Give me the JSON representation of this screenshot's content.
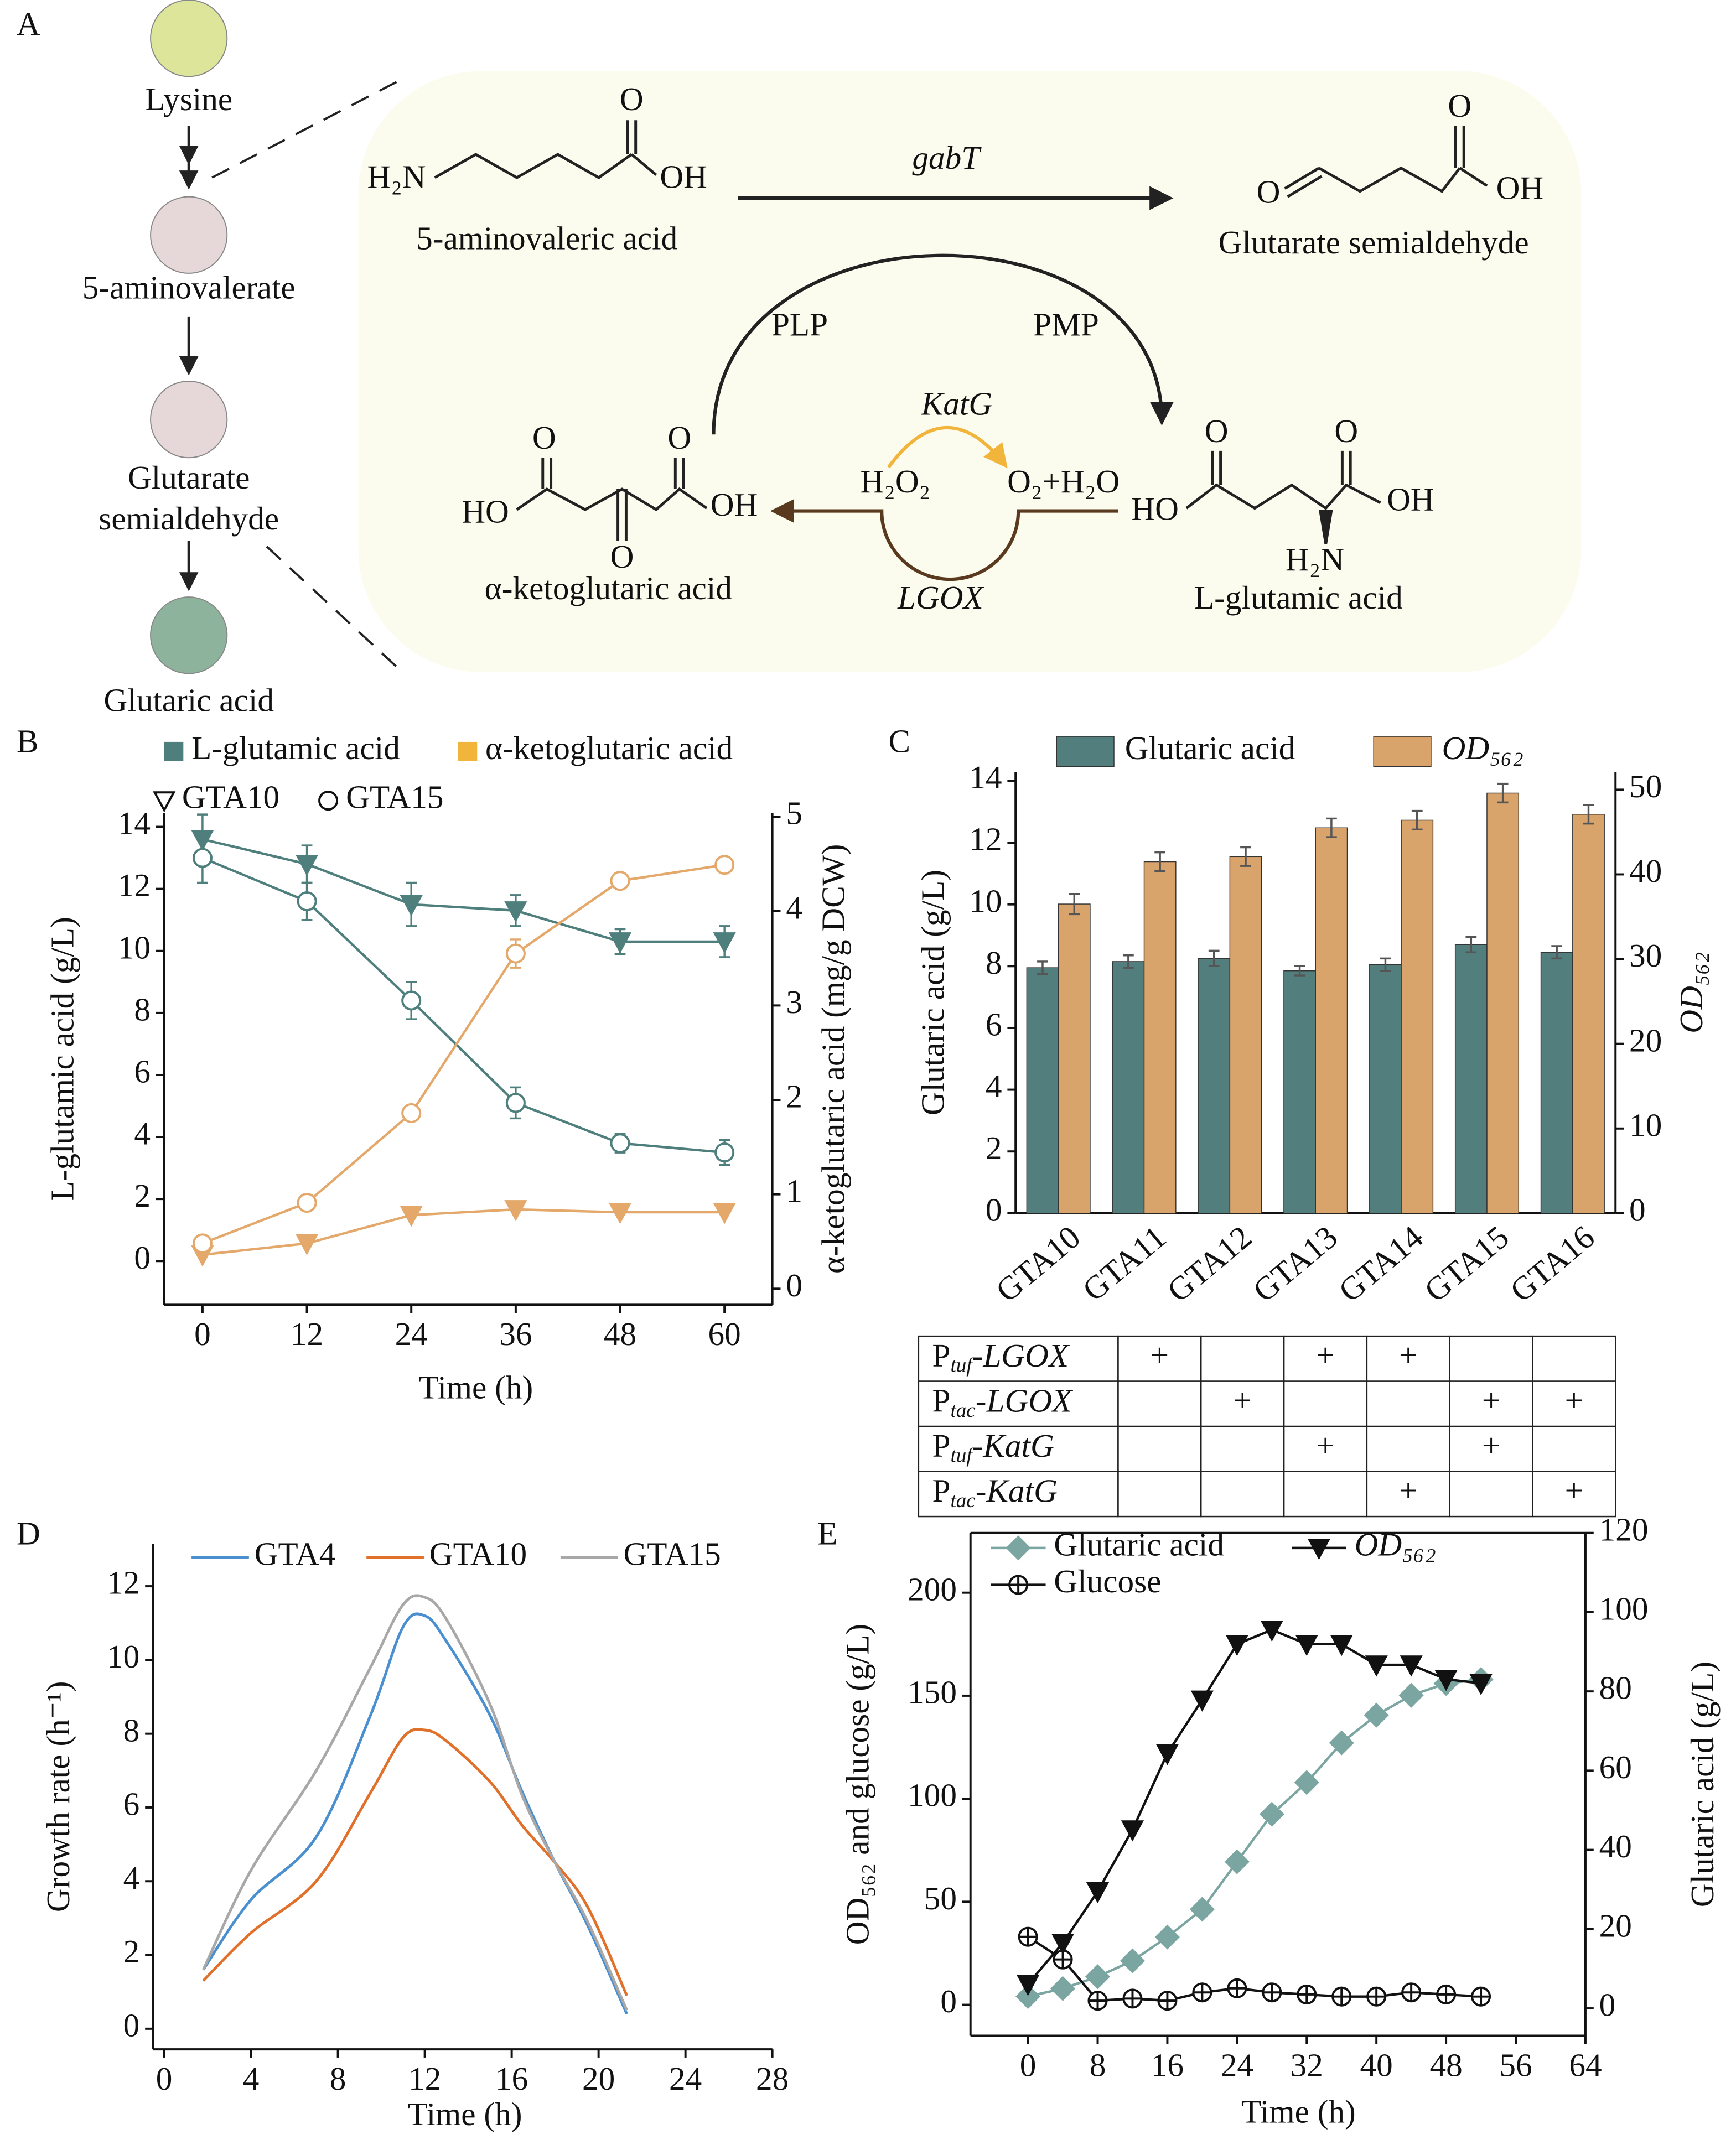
{
  "diagram": {
    "panel": "A",
    "pathway": [
      {
        "label": "Lysine",
        "color": "#dde59a"
      },
      {
        "label": "5-aminovalerate",
        "color": "#e6d8d8"
      },
      {
        "label": "Glutarate",
        "label2": "semialdehyde",
        "color": "#e6d8d8"
      },
      {
        "label": "Glutaric acid",
        "color": "#8db39d"
      }
    ],
    "reaction": {
      "substrate": "5-aminovaleric acid",
      "product": "Glutarate semialdehyde",
      "enzyme": "gabT",
      "cofactor_in": "PLP",
      "cofactor_out": "PMP",
      "amino_donor": "α-ketoglutaric acid",
      "amino_product": "L-glutamic acid",
      "oxidase": "LGOX",
      "catalase": "KatG",
      "peroxide": "H₂O₂",
      "catalase_products": "O₂+H₂O"
    },
    "atoms": [
      "H₂N",
      "O",
      "OH",
      "O",
      "O",
      "OH",
      "HO",
      "O",
      "O",
      "O",
      "OH",
      "HO",
      "O",
      "O",
      "OH",
      "H₂N"
    ]
  },
  "chart_data": [
    {
      "type": "line",
      "panel": "B",
      "xlabel": "Time (h)",
      "ylabel": "L-glutamic acid (g/L)",
      "y2label": "α-ketoglutaric acid (mg/g DCW)",
      "x": [
        0,
        12,
        24,
        36,
        48,
        60
      ],
      "xlim": [
        -4.4,
        65.5
      ],
      "xticks": [
        0,
        12,
        24,
        36,
        48,
        60
      ],
      "ylim": [
        -1.41,
        14.45
      ],
      "yticks": [
        0,
        2,
        4,
        6,
        8,
        10,
        12,
        14
      ],
      "y2lim": [
        -0.17,
        5.04
      ],
      "y2ticks": [
        0,
        1,
        2,
        3,
        4,
        5
      ],
      "legend": {
        "colors": [
          {
            "name": "L-glutamic acid",
            "color": "#4e7f7d"
          },
          {
            "name": "α-ketoglutaric acid",
            "color": "#f2b53c"
          }
        ],
        "markers": [
          {
            "name": "GTA10",
            "marker": "triangle"
          },
          {
            "name": "GTA15",
            "marker": "circle"
          }
        ]
      },
      "series": [
        {
          "color": "#4e7f7d",
          "marker": "triangle",
          "fill": true,
          "values": [
            13.6,
            12.8,
            11.5,
            11.3,
            10.3,
            10.3
          ],
          "errors": [
            0.8,
            0.6,
            0.7,
            0.5,
            0.4,
            0.5
          ]
        },
        {
          "color": "#4e7f7d",
          "marker": "circle",
          "fill": false,
          "values": [
            13.0,
            11.6,
            8.4,
            5.1,
            3.8,
            3.5
          ],
          "errors": [
            0.8,
            0.6,
            0.6,
            0.5,
            0.3,
            0.4
          ]
        },
        {
          "color": "#e3a86a",
          "marker": "triangle",
          "fill": true,
          "axis": "y2",
          "values": [
            0.36,
            0.48,
            0.78,
            0.84,
            0.81,
            0.81
          ]
        },
        {
          "color": "#e3a86a",
          "marker": "circle",
          "fill": false,
          "axis": "y2",
          "values": [
            0.48,
            0.91,
            1.86,
            3.55,
            4.32,
            4.49
          ],
          "errors": [
            0.03,
            0.03,
            0.05,
            0.15,
            0.05,
            0.05
          ]
        }
      ]
    },
    {
      "type": "bar",
      "panel": "C",
      "ylabel": "Glutaric acid (g/L)",
      "y2label": "OD₅₆₂",
      "categories": [
        "GTA10",
        "GTA11",
        "GTA12",
        "GTA13",
        "GTA14",
        "GTA15",
        "GTA16"
      ],
      "ylim": [
        0,
        14.29
      ],
      "yticks": [
        0,
        2,
        4,
        6,
        8,
        10,
        12,
        14
      ],
      "y2lim": [
        0,
        52.1
      ],
      "y2ticks": [
        0,
        10,
        20,
        30,
        40,
        50
      ],
      "series": [
        {
          "name": "Glutaric acid",
          "color": "#527e7e",
          "values": [
            7.95,
            8.15,
            8.25,
            7.85,
            8.05,
            8.7,
            8.45
          ],
          "errors": [
            0.2,
            0.2,
            0.25,
            0.15,
            0.2,
            0.25,
            0.2
          ]
        },
        {
          "name": "OD₅₆₂",
          "color": "#d9a36c",
          "axis": "y2",
          "values": [
            36.5,
            41.5,
            42.1,
            45.5,
            46.4,
            49.6,
            47.1
          ],
          "errors": [
            1.2,
            1.1,
            1.1,
            1.1,
            1.1,
            1.1,
            1.1
          ]
        }
      ],
      "table": {
        "rows": [
          {
            "promoter": "P",
            "subscript": "tuf",
            "gene": "-LGOX",
            "cells": [
              "+",
              null,
              "+",
              "+",
              null,
              null
            ]
          },
          {
            "promoter": "P",
            "subscript": "tac",
            "gene": "-LGOX",
            "cells": [
              null,
              "+",
              null,
              null,
              "+",
              "+"
            ]
          },
          {
            "promoter": "P",
            "subscript": "tuf",
            "gene": "-KatG",
            "cells": [
              null,
              null,
              "+",
              null,
              "+",
              null
            ]
          },
          {
            "promoter": "P",
            "subscript": "tac",
            "gene": "-KatG",
            "cells": [
              null,
              null,
              null,
              "+",
              null,
              "+"
            ]
          }
        ]
      }
    },
    {
      "type": "line",
      "panel": "D",
      "smooth": true,
      "xlabel": "Time (h)",
      "ylabel": "Growth rate (h⁻¹)",
      "x": [
        1.8,
        4,
        7,
        9.5,
        11,
        12,
        13,
        15,
        16.5,
        18,
        19.5,
        21.3
      ],
      "xlim": [
        -0.5,
        28
      ],
      "xticks": [
        0,
        4,
        8,
        12,
        16,
        20,
        24,
        28
      ],
      "ylim": [
        -0.56,
        13.15
      ],
      "yticks": [
        0,
        2,
        4,
        6,
        8,
        10,
        12
      ],
      "series": [
        {
          "name": "GTA4",
          "color": "#4a8fcf",
          "values": [
            1.6,
            3.5,
            5.2,
            8.5,
            10.9,
            11.2,
            10.5,
            8.5,
            6.4,
            4.5,
            2.8,
            0.4
          ]
        },
        {
          "name": "GTA10",
          "color": "#e0702a",
          "values": [
            1.3,
            2.6,
            4.0,
            6.4,
            7.9,
            8.1,
            7.8,
            6.7,
            5.5,
            4.5,
            3.3,
            0.9
          ]
        },
        {
          "name": "GTA15",
          "color": "#a8a8a8",
          "values": [
            1.6,
            4.3,
            7.0,
            9.8,
            11.5,
            11.7,
            11.1,
            8.8,
            6.3,
            4.5,
            2.9,
            0.5
          ]
        }
      ]
    },
    {
      "type": "line",
      "panel": "E",
      "frame": "box",
      "xlabel": "Time (h)",
      "ylabel": "OD₅₆₂ and glucose (g/L)",
      "y2label": "Glutaric acid (g/L)",
      "x": [
        0,
        4,
        8,
        12,
        16,
        20,
        24,
        28,
        32,
        36,
        40,
        44,
        48,
        52
      ],
      "xlim": [
        -6.6,
        64
      ],
      "xticks": [
        0,
        8,
        16,
        24,
        32,
        40,
        48,
        56,
        64
      ],
      "ylim": [
        -15,
        229
      ],
      "yticks": [
        0,
        50,
        100,
        150,
        200
      ],
      "y2lim": [
        -6.9,
        120
      ],
      "y2ticks": [
        0,
        20,
        40,
        60,
        80,
        100,
        120
      ],
      "series": [
        {
          "name": "Glutaric acid",
          "color": "#7ba5a0",
          "marker": "diamond",
          "fill": true,
          "axis": "y2",
          "values": [
            3,
            5,
            8,
            12,
            18,
            25,
            37,
            49,
            57,
            67,
            74,
            79,
            82,
            83
          ]
        },
        {
          "name": "OD₅₆₂",
          "color": "#111111",
          "marker": "triangle",
          "fill": true,
          "values": [
            10,
            30,
            55,
            85,
            122,
            148,
            175,
            182,
            175,
            175,
            165,
            165,
            158,
            156
          ]
        },
        {
          "name": "Glucose",
          "color": "#111111",
          "marker": "circle-cross",
          "fill": false,
          "values": [
            33,
            22,
            2,
            3,
            2,
            6,
            8,
            6,
            5,
            4,
            4,
            6,
            5,
            4
          ]
        }
      ]
    }
  ]
}
